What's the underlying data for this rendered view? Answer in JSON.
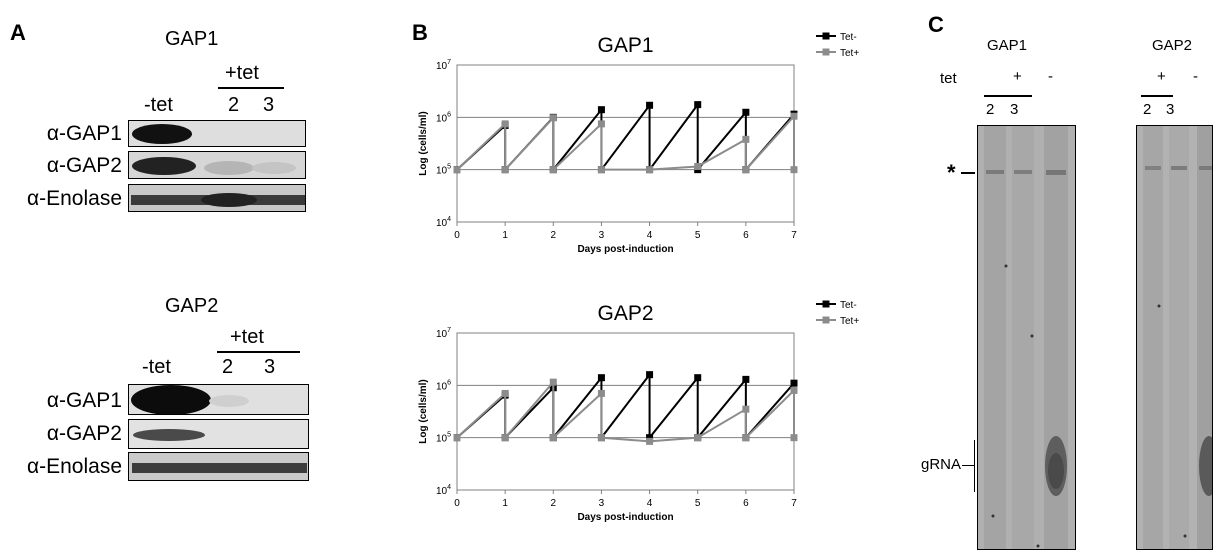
{
  "panelA": {
    "letter": "A",
    "blots": [
      {
        "title": "GAP1",
        "tet_header": "+tet",
        "lanes": [
          "-tet",
          "2",
          "3"
        ],
        "rows": [
          {
            "label": "α-GAP1",
            "intensity": [
              1.0,
              0.05,
              0.05
            ]
          },
          {
            "label": "α-GAP2",
            "intensity": [
              0.9,
              0.25,
              0.15
            ]
          },
          {
            "label": "α-Enolase",
            "intensity": [
              0.85,
              0.9,
              0.85
            ]
          }
        ]
      },
      {
        "title": "GAP2",
        "tet_header": "+tet",
        "lanes": [
          "-tet",
          "2",
          "3"
        ],
        "rows": [
          {
            "label": "α-GAP1",
            "intensity": [
              1.0,
              0.1,
              0.05
            ]
          },
          {
            "label": "α-GAP2",
            "intensity": [
              0.7,
              0.02,
              0.02
            ]
          },
          {
            "label": "α-Enolase",
            "intensity": [
              0.85,
              0.85,
              0.85
            ]
          }
        ]
      }
    ]
  },
  "panelB": {
    "letter": "B",
    "legend": [
      "Tet-",
      "Tet+"
    ],
    "colors": {
      "tet_minus": "#000000",
      "tet_plus": "#8c8c8c"
    }
  },
  "chart_data": [
    {
      "type": "line",
      "title": "GAP1",
      "xlabel": "Days post-induction",
      "ylabel": "Log (cells/ml)",
      "y_scale": "log",
      "xlim": [
        0,
        7
      ],
      "ylim": [
        10000,
        10000000
      ],
      "x_ticks": [
        "0",
        "1",
        "2",
        "3",
        "4",
        "5",
        "6",
        "7"
      ],
      "y_ticks": [
        {
          "base": "10",
          "exp": "4"
        },
        {
          "base": "10",
          "exp": "5"
        },
        {
          "base": "10",
          "exp": "6"
        },
        {
          "base": "10",
          "exp": "7"
        }
      ],
      "grid": "horizontal",
      "legend_position": "top-right",
      "series": [
        {
          "name": "Tet-",
          "x": [
            0,
            1,
            1,
            2,
            2,
            3,
            3,
            4,
            4,
            5,
            5,
            6,
            6,
            7
          ],
          "y": [
            100000,
            700000,
            100000,
            1000000,
            100000,
            1400000,
            100000,
            1700000,
            100000,
            1750000,
            100000,
            1250000,
            100000,
            1150000
          ]
        },
        {
          "name": "Tet+",
          "x": [
            0,
            1,
            1,
            2,
            2,
            3,
            3,
            4,
            5,
            6,
            6,
            7,
            7
          ],
          "y": [
            100000,
            750000,
            100000,
            980000,
            100000,
            750000,
            100000,
            100000,
            115000,
            380000,
            100000,
            1050000,
            100000
          ]
        }
      ]
    },
    {
      "type": "line",
      "title": "GAP2",
      "xlabel": "Days post-induction",
      "ylabel": "Log (cells/ml)",
      "y_scale": "log",
      "xlim": [
        0,
        7
      ],
      "ylim": [
        10000,
        10000000
      ],
      "x_ticks": [
        "0",
        "1",
        "2",
        "3",
        "4",
        "5",
        "6",
        "7"
      ],
      "y_ticks": [
        {
          "base": "10",
          "exp": "4"
        },
        {
          "base": "10",
          "exp": "5"
        },
        {
          "base": "10",
          "exp": "6"
        },
        {
          "base": "10",
          "exp": "7"
        }
      ],
      "grid": "horizontal",
      "legend_position": "top-right",
      "series": [
        {
          "name": "Tet-",
          "x": [
            0,
            1,
            1,
            2,
            2,
            3,
            3,
            4,
            4,
            5,
            5,
            6,
            6,
            7
          ],
          "y": [
            100000,
            650000,
            100000,
            900000,
            100000,
            1400000,
            100000,
            1600000,
            100000,
            1400000,
            100000,
            1300000,
            100000,
            1100000
          ]
        },
        {
          "name": "Tet+",
          "x": [
            0,
            1,
            1,
            2,
            2,
            3,
            3,
            4,
            5,
            6,
            6,
            7,
            7
          ],
          "y": [
            100000,
            700000,
            100000,
            1150000,
            100000,
            700000,
            100000,
            85000,
            100000,
            350000,
            100000,
            800000,
            100000
          ]
        }
      ]
    }
  ],
  "panelC": {
    "letter": "C",
    "tet_label": "tet",
    "star_label": "*",
    "grna_label": "gRNA",
    "gels": [
      {
        "title": "GAP1",
        "plus": "+",
        "minus": "-",
        "lanes": [
          "2",
          "3"
        ]
      },
      {
        "title": "GAP2",
        "plus": "+",
        "minus": "-",
        "lanes": [
          "2",
          "3"
        ]
      }
    ]
  }
}
